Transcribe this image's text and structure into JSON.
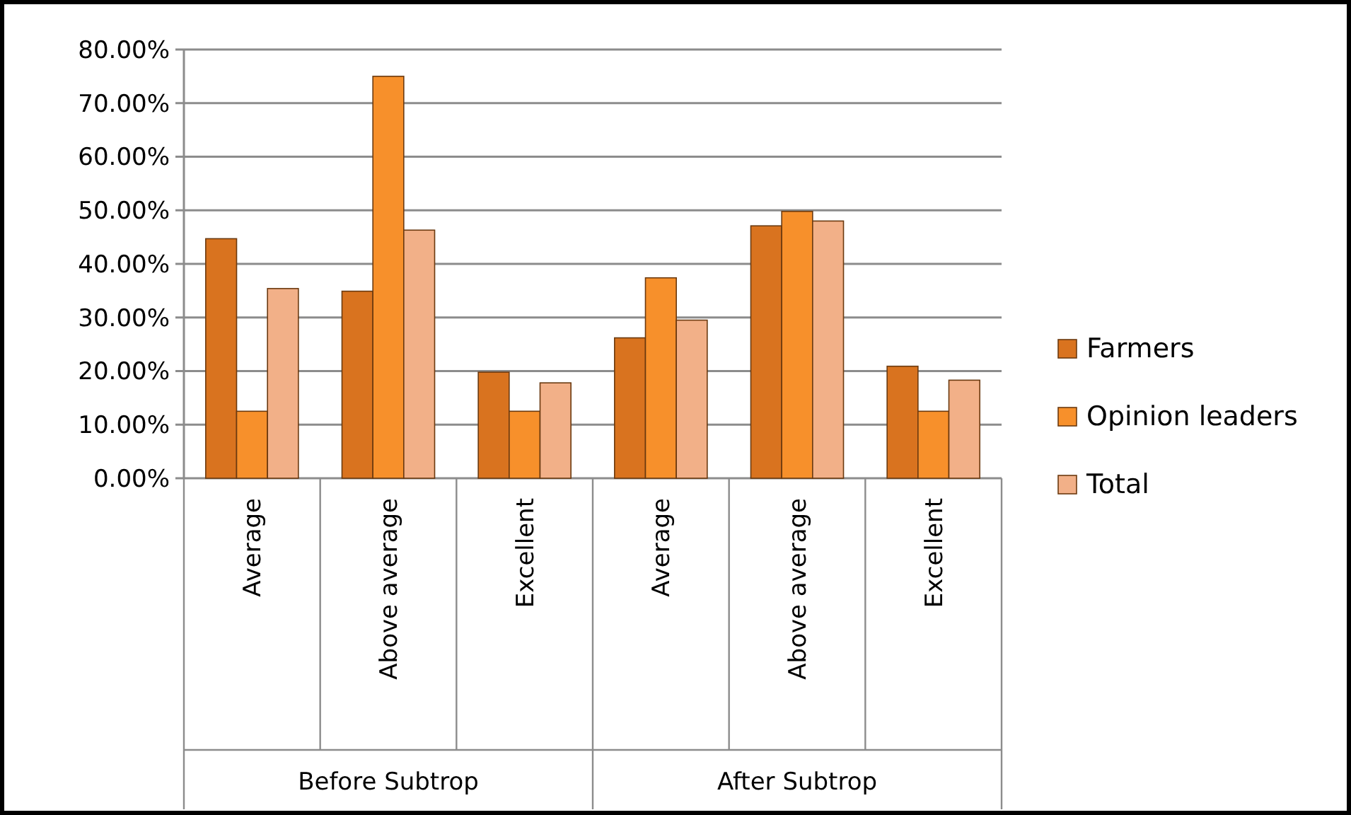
{
  "chart_data": {
    "type": "bar",
    "categories": [
      "Average",
      "Above average",
      "Excellent",
      "Average",
      "Above average",
      "Excellent"
    ],
    "series": [
      {
        "name": "Farmers",
        "color": "#d9731f",
        "values": [
          44.7,
          34.9,
          19.8,
          26.2,
          47.1,
          20.9
        ]
      },
      {
        "name": "Opinion leaders",
        "color": "#f7902b",
        "values": [
          12.5,
          75,
          12.5,
          37.4,
          49.8,
          12.5
        ]
      },
      {
        "name": "Total",
        "color": "#f2b088",
        "values": [
          35.4,
          46.3,
          17.8,
          29.5,
          48,
          18.3
        ]
      }
    ],
    "ylim": [
      0,
      80
    ],
    "yticks": [
      {
        "value": 0,
        "label": "0.00%"
      },
      {
        "value": 10,
        "label": "10.00%"
      },
      {
        "value": 20,
        "label": "20.00%"
      },
      {
        "value": 30,
        "label": "30.00%"
      },
      {
        "value": 40,
        "label": "40.00%"
      },
      {
        "value": 50,
        "label": "50.00%"
      },
      {
        "value": 60,
        "label": "60.00%"
      },
      {
        "value": 70,
        "label": "70.00%"
      },
      {
        "value": 80,
        "label": "80.00%"
      }
    ],
    "annotations": [
      "Before Subtrop",
      "After Subtrop"
    ],
    "grid": "y",
    "legend": "right"
  }
}
